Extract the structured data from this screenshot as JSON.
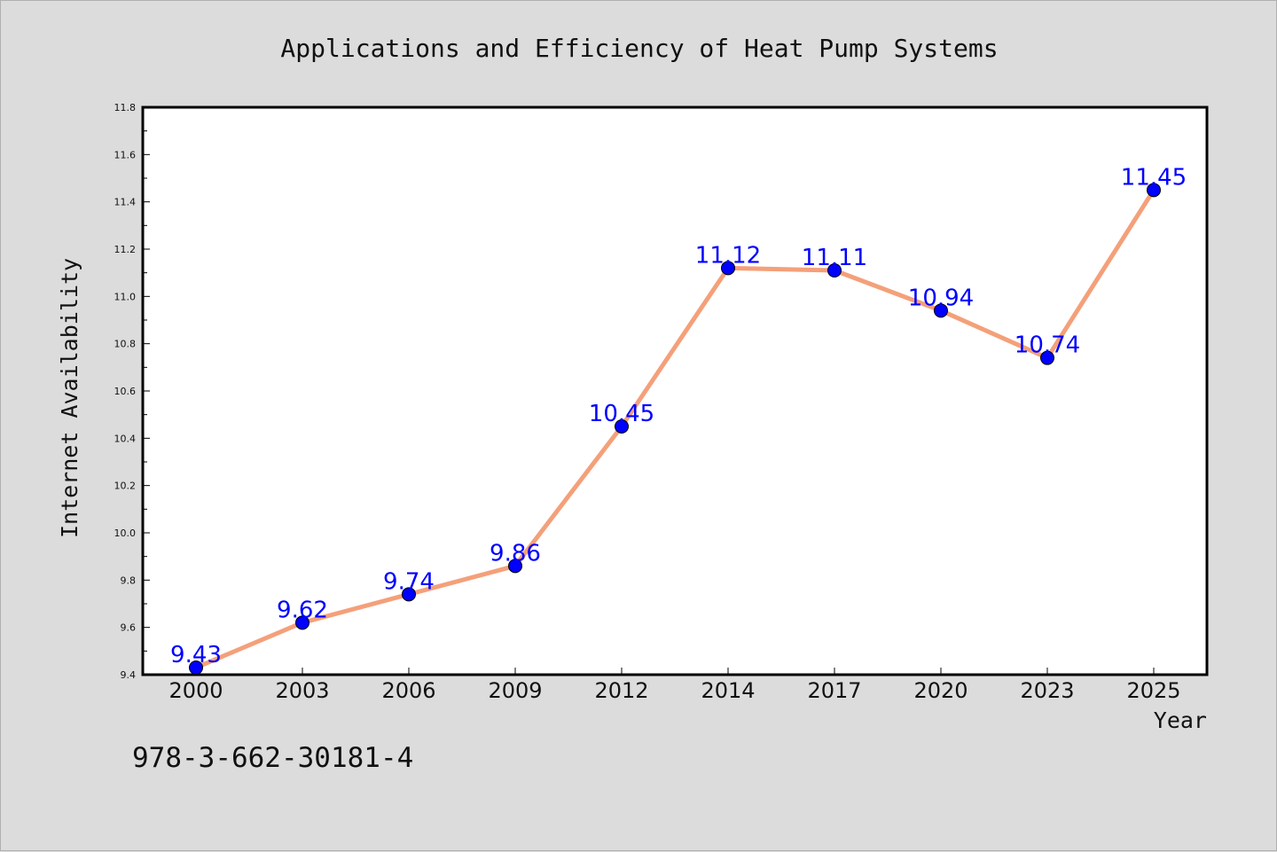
{
  "chart_data": {
    "type": "line",
    "title": "Applications and Efficiency of Heat Pump Systems",
    "xlabel": "Year",
    "ylabel": "Internet Availability",
    "categories": [
      "2000",
      "2003",
      "2006",
      "2009",
      "2012",
      "2014",
      "2017",
      "2020",
      "2023",
      "2025"
    ],
    "series": [
      {
        "values": [
          9.43,
          9.62,
          9.74,
          9.86,
          10.45,
          11.12,
          11.11,
          10.94,
          10.74,
          11.45
        ]
      }
    ],
    "ylim": [
      9.4,
      11.8
    ],
    "yticks": [
      "9.4",
      "9.6",
      "9.8",
      "10.0",
      "10.2",
      "10.4",
      "10.6",
      "10.8",
      "11.0",
      "11.2",
      "11.4",
      "11.6",
      "11.8"
    ],
    "data_labels": [
      "9.43",
      "9.62",
      "9.74",
      "9.86",
      "10.45",
      "11.12",
      "11.11",
      "10.94",
      "10.74",
      "11.45"
    ],
    "grid": false,
    "line_color": "#f4a07a",
    "marker_color": "#0000ff",
    "label_color": "#0000ff"
  },
  "footnote": "978-3-662-30181-4"
}
